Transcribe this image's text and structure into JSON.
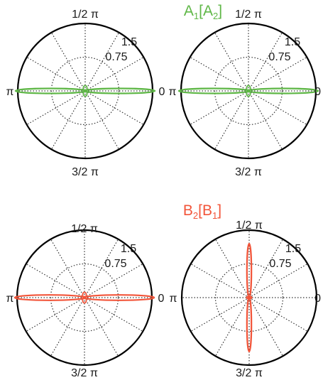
{
  "colors": {
    "A": "#5fb747",
    "B": "#f2553a",
    "axis": "#000000",
    "grid": "#333333"
  },
  "groups": [
    {
      "title_main": "A",
      "title_sub": "1",
      "title_open": "[A",
      "title_sub2": "2",
      "title_close": "]",
      "color_key": "A"
    },
    {
      "title_main": "B",
      "title_sub": "2",
      "title_open": "[B",
      "title_sub2": "1",
      "title_close": "]",
      "color_key": "B"
    }
  ],
  "axis_labels": {
    "top": "1/2 π",
    "left": "π",
    "right": "0",
    "bottom": "3/2 π",
    "r_outer": "1.5",
    "r_inner": "0.75"
  },
  "chart_data": [
    {
      "type": "polar",
      "group": "A",
      "rlim": [
        0,
        1.5
      ],
      "rticks": [
        0.75,
        1.5
      ],
      "theta_ticks": [
        "0",
        "1/2 π",
        "π",
        "3/2 π"
      ],
      "grid": true,
      "series": [
        {
          "shape": "lobes",
          "lobe_direction_deg": 0,
          "lobe_length": 1.55,
          "lobe_halfwidth": 0.055,
          "secondary_length": 0.12,
          "color_key": "A"
        }
      ]
    },
    {
      "type": "polar",
      "group": "A",
      "rlim": [
        0,
        1.5
      ],
      "rticks": [
        0.75,
        1.5
      ],
      "theta_ticks": [
        "0",
        "1/2 π",
        "π",
        "3/2 π"
      ],
      "grid": true,
      "series": [
        {
          "shape": "lobes",
          "lobe_direction_deg": 0,
          "lobe_length": 1.55,
          "lobe_halfwidth": 0.055,
          "secondary_length": 0.12,
          "color_key": "A"
        }
      ]
    },
    {
      "type": "polar",
      "group": "B",
      "rlim": [
        0,
        1.5
      ],
      "rticks": [
        0.75,
        1.5
      ],
      "theta_ticks": [
        "0",
        "1/2 π",
        "π",
        "3/2 π"
      ],
      "grid": true,
      "series": [
        {
          "shape": "lobes",
          "lobe_direction_deg": 0,
          "lobe_length": 1.55,
          "lobe_halfwidth": 0.06,
          "secondary_length": 0.12,
          "color_key": "B"
        }
      ]
    },
    {
      "type": "polar",
      "group": "B",
      "rlim": [
        0,
        1.5
      ],
      "rticks": [
        0.75,
        1.5
      ],
      "theta_ticks": [
        "0",
        "1/2 π",
        "π",
        "3/2 π"
      ],
      "grid": true,
      "series": [
        {
          "shape": "lobes",
          "lobe_direction_deg": 90,
          "lobe_length": 1.2,
          "lobe_halfwidth": 0.05,
          "secondary_length": 0.06,
          "color_key": "B"
        }
      ]
    }
  ]
}
